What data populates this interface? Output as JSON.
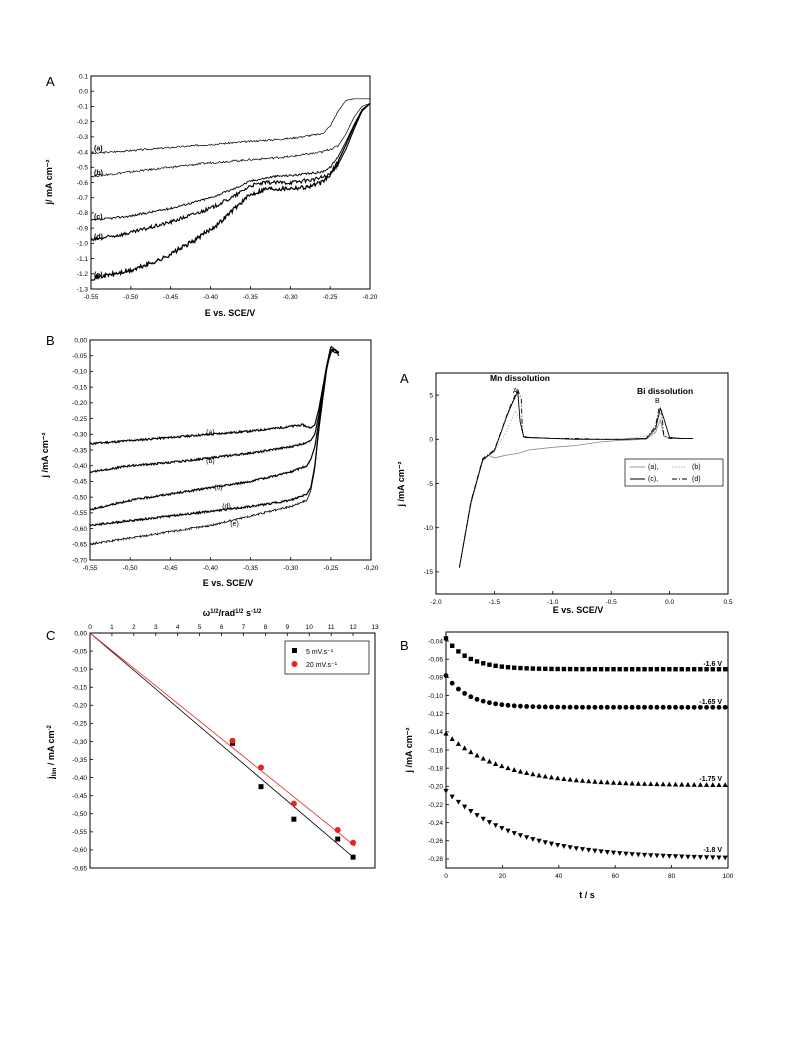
{
  "chart_data": [
    {
      "panel": "A",
      "type": "line",
      "xlabel": "E vs. SCE/V",
      "ylabel": "j/ mA cm⁻²",
      "xlim": [
        -0.55,
        -0.2
      ],
      "ylim": [
        -1.3,
        0.1
      ],
      "xticks": [
        "-0.55",
        "-0.50",
        "-0.45",
        "-0.40",
        "-0.35",
        "-0.30",
        "-0.25",
        "-0.20"
      ],
      "yticks": [
        "0.1",
        "0.0",
        "-0.1",
        "-0.2",
        "-0.3",
        "-0.4",
        "-0.5",
        "-0.6",
        "-0.7",
        "-0.8",
        "-0.9",
        "-1.0",
        "-1.1",
        "-1.2",
        "-1.3"
      ],
      "series": [
        {
          "name": "(a)",
          "x": [
            -0.55,
            -0.5,
            -0.45,
            -0.4,
            -0.35,
            -0.3,
            -0.26,
            -0.25,
            -0.24,
            -0.23,
            -0.22,
            -0.21,
            -0.2
          ],
          "y": [
            -0.41,
            -0.39,
            -0.37,
            -0.35,
            -0.33,
            -0.31,
            -0.28,
            -0.23,
            -0.13,
            -0.06,
            -0.05,
            -0.05,
            -0.05
          ]
        },
        {
          "name": "(b)",
          "x": [
            -0.55,
            -0.5,
            -0.45,
            -0.4,
            -0.35,
            -0.3,
            -0.26,
            -0.24,
            -0.23,
            -0.22,
            -0.21,
            -0.2
          ],
          "y": [
            -0.56,
            -0.53,
            -0.5,
            -0.47,
            -0.45,
            -0.43,
            -0.4,
            -0.36,
            -0.28,
            -0.17,
            -0.1,
            -0.08
          ]
        },
        {
          "name": "(c)",
          "x": [
            -0.55,
            -0.5,
            -0.45,
            -0.4,
            -0.37,
            -0.35,
            -0.32,
            -0.29,
            -0.26,
            -0.25,
            -0.24,
            -0.23,
            -0.22,
            -0.21,
            -0.2
          ],
          "y": [
            -0.85,
            -0.82,
            -0.77,
            -0.7,
            -0.64,
            -0.59,
            -0.56,
            -0.55,
            -0.53,
            -0.5,
            -0.43,
            -0.33,
            -0.22,
            -0.12,
            -0.08
          ]
        },
        {
          "name": "(d)",
          "x": [
            -0.55,
            -0.5,
            -0.45,
            -0.4,
            -0.37,
            -0.35,
            -0.33,
            -0.3,
            -0.27,
            -0.25,
            -0.24,
            -0.23,
            -0.22,
            -0.21,
            -0.2
          ],
          "y": [
            -0.98,
            -0.93,
            -0.86,
            -0.77,
            -0.69,
            -0.62,
            -0.6,
            -0.6,
            -0.58,
            -0.55,
            -0.48,
            -0.38,
            -0.25,
            -0.13,
            -0.08
          ]
        },
        {
          "name": "(e)",
          "x": [
            -0.55,
            -0.5,
            -0.46,
            -0.42,
            -0.39,
            -0.37,
            -0.35,
            -0.33,
            -0.31,
            -0.28,
            -0.26,
            -0.25,
            -0.24,
            -0.23,
            -0.22,
            -0.21,
            -0.2
          ],
          "y": [
            -1.23,
            -1.18,
            -1.1,
            -0.98,
            -0.87,
            -0.77,
            -0.68,
            -0.64,
            -0.64,
            -0.63,
            -0.6,
            -0.55,
            -0.46,
            -0.35,
            -0.23,
            -0.13,
            -0.08
          ]
        }
      ]
    },
    {
      "panel": "B",
      "type": "line",
      "xlabel": "E vs. SCE/V",
      "ylabel": "j /mA cm⁻²",
      "xlim": [
        -0.55,
        -0.2
      ],
      "ylim": [
        -0.7,
        0.0
      ],
      "xticks": [
        "-0,55",
        "-0,50",
        "-0,45",
        "-0,40",
        "-0,35",
        "-0,30",
        "-0,25",
        "-0,20"
      ],
      "yticks": [
        "0,00",
        "-0,05",
        "-0,10",
        "-0,15",
        "-0,20",
        "-0,25",
        "-0,30",
        "-0,35",
        "-0,40",
        "-0,45",
        "-0,50",
        "-0,55",
        "-0,60",
        "-0,65",
        "-0,70"
      ],
      "series": [
        {
          "name": "(a)",
          "x": [
            -0.55,
            -0.5,
            -0.45,
            -0.4,
            -0.35,
            -0.3,
            -0.285,
            -0.275,
            -0.27,
            -0.265,
            -0.26,
            -0.255,
            -0.25,
            -0.245,
            -0.24
          ],
          "y": [
            -0.33,
            -0.32,
            -0.31,
            -0.3,
            -0.29,
            -0.275,
            -0.27,
            -0.28,
            -0.27,
            -0.22,
            -0.15,
            -0.08,
            -0.04,
            -0.03,
            -0.04
          ]
        },
        {
          "name": "(b)",
          "x": [
            -0.55,
            -0.5,
            -0.45,
            -0.4,
            -0.35,
            -0.3,
            -0.285,
            -0.275,
            -0.27,
            -0.265,
            -0.26,
            -0.255,
            -0.25,
            -0.245,
            -0.24
          ],
          "y": [
            -0.42,
            -0.4,
            -0.39,
            -0.375,
            -0.36,
            -0.34,
            -0.33,
            -0.32,
            -0.3,
            -0.24,
            -0.16,
            -0.08,
            -0.03,
            -0.04,
            -0.04
          ]
        },
        {
          "name": "(c)",
          "x": [
            -0.55,
            -0.5,
            -0.45,
            -0.4,
            -0.35,
            -0.3,
            -0.28,
            -0.275,
            -0.27,
            -0.265,
            -0.26,
            -0.255,
            -0.25,
            -0.245,
            -0.24
          ],
          "y": [
            -0.54,
            -0.51,
            -0.49,
            -0.47,
            -0.45,
            -0.42,
            -0.4,
            -0.38,
            -0.34,
            -0.26,
            -0.17,
            -0.08,
            -0.02,
            -0.03,
            -0.04
          ]
        },
        {
          "name": "(d)",
          "x": [
            -0.55,
            -0.5,
            -0.45,
            -0.4,
            -0.35,
            -0.3,
            -0.28,
            -0.275,
            -0.27,
            -0.265,
            -0.26,
            -0.255,
            -0.25,
            -0.245,
            -0.24
          ],
          "y": [
            -0.59,
            -0.575,
            -0.56,
            -0.545,
            -0.53,
            -0.51,
            -0.49,
            -0.47,
            -0.4,
            -0.28,
            -0.18,
            -0.09,
            -0.03,
            -0.03,
            -0.05
          ]
        },
        {
          "name": "(e)",
          "x": [
            -0.55,
            -0.5,
            -0.45,
            -0.4,
            -0.35,
            -0.3,
            -0.28,
            -0.275,
            -0.27,
            -0.265,
            -0.26,
            -0.255,
            -0.25,
            -0.245,
            -0.24
          ],
          "y": [
            -0.65,
            -0.63,
            -0.61,
            -0.59,
            -0.56,
            -0.53,
            -0.51,
            -0.48,
            -0.41,
            -0.29,
            -0.19,
            -0.09,
            -0.04,
            -0.03,
            -0.05
          ]
        }
      ]
    },
    {
      "panel": "C",
      "type": "scatter",
      "xlabel": "ω¹ᐟ²/rad¹ᐟ² s⁻¹ᐟ²",
      "ylabel": "j_lim / mA cm⁻²",
      "xlim": [
        0,
        13
      ],
      "ylim": [
        -0.65,
        0.0
      ],
      "xticks": [
        "0",
        "1",
        "2",
        "3",
        "4",
        "5",
        "6",
        "7",
        "8",
        "9",
        "10",
        "11",
        "12",
        "13"
      ],
      "yticks": [
        "0,00",
        "-0,05",
        "-0,10",
        "-0,15",
        "-0,20",
        "-0,25",
        "-0,30",
        "-0,35",
        "-0,40",
        "-0,45",
        "-0,50",
        "-0,55",
        "-0,60",
        "-0,65"
      ],
      "series": [
        {
          "name": "5 mV.s⁻¹",
          "marker": "square",
          "color": "#000000",
          "x": [
            6.5,
            7.8,
            9.3,
            11.3,
            12.0
          ],
          "y": [
            -0.305,
            -0.425,
            -0.515,
            -0.57,
            -0.62
          ],
          "fit": [
            [
              0,
              0
            ],
            [
              12.1,
              -0.625
            ]
          ]
        },
        {
          "name": "20 mV.s⁻¹",
          "marker": "circle",
          "color": "#e8231f",
          "x": [
            6.5,
            7.8,
            9.3,
            11.3,
            12.0
          ],
          "y": [
            -0.298,
            -0.372,
            -0.472,
            -0.545,
            -0.58
          ],
          "fit": [
            [
              0,
              0
            ],
            [
              12.1,
              -0.59
            ]
          ]
        }
      ]
    },
    {
      "panel": "A",
      "type": "line",
      "xlabel": "E vs. SCE/V",
      "ylabel": "j /mA cm⁻²",
      "xlim": [
        -2.0,
        0.5
      ],
      "ylim": [
        -17.5,
        7.5
      ],
      "xticks": [
        "-2.0",
        "-1.5",
        "-1.0",
        "-0.5",
        "0.0",
        "0.5"
      ],
      "yticks": [
        "5",
        "0",
        "-5",
        "-10",
        "-15"
      ],
      "annotations": [
        "Mn dissolution",
        "A",
        "Bi dissolution",
        "B"
      ],
      "legend": {
        "row1": "(a),",
        "row1b": "(b)",
        "row2": "(c),",
        "row2b": "(d)",
        "position": "right"
      },
      "series": [
        {
          "name": "(a)",
          "x": [
            -1.8,
            -1.7,
            -1.6,
            -1.55,
            -1.5,
            -1.4,
            -1.3,
            -1.2,
            -1.0,
            -0.8,
            -0.6,
            -0.4,
            -0.2,
            -0.12,
            -0.08,
            -0.05,
            0.0,
            0.1,
            0.2
          ],
          "y": [
            -14.5,
            -7.0,
            -2.5,
            -1.8,
            -2.1,
            -1.8,
            -1.6,
            -1.2,
            -0.9,
            -0.7,
            -0.3,
            -0.1,
            0.0,
            0.8,
            2.2,
            0.4,
            0.1,
            0.1,
            0.1
          ]
        },
        {
          "name": "(b)",
          "x": [
            -1.8,
            -1.7,
            -1.6,
            -1.55,
            -1.5,
            -1.4,
            -1.32,
            -1.27,
            -1.25,
            -1.2,
            -1.0,
            -0.7,
            -0.4,
            -0.15,
            -0.1,
            -0.08,
            -0.05,
            0.0,
            0.2
          ],
          "y": [
            -14.5,
            -7.0,
            -2.4,
            -1.9,
            -1.4,
            0.8,
            3.2,
            2.0,
            0.2,
            0.1,
            0.1,
            0.0,
            0.0,
            0.5,
            2.5,
            3.0,
            0.3,
            0.1,
            0.1
          ]
        },
        {
          "name": "(c)",
          "x": [
            -1.8,
            -1.7,
            -1.6,
            -1.55,
            -1.5,
            -1.45,
            -1.4,
            -1.35,
            -1.3,
            -1.28,
            -1.25,
            -1.2,
            -1.0,
            -0.8,
            -0.6,
            -0.4,
            -0.2,
            -0.12,
            -0.08,
            -0.06,
            0.0,
            0.1,
            0.2
          ],
          "y": [
            -14.5,
            -7.2,
            -2.3,
            -1.8,
            -1.3,
            0.5,
            2.4,
            4.0,
            5.4,
            2.0,
            0.3,
            0.2,
            0.1,
            0.0,
            0.0,
            0.0,
            0.1,
            1.2,
            3.5,
            2.8,
            0.2,
            0.1,
            0.1
          ]
        },
        {
          "name": "(d)",
          "x": [
            -1.8,
            -1.7,
            -1.6,
            -1.55,
            -1.5,
            -1.45,
            -1.4,
            -1.35,
            -1.3,
            -1.27,
            -1.26,
            -1.25,
            -1.2,
            -1.0,
            -0.8,
            -0.6,
            -0.4,
            -0.2,
            -0.12,
            -0.09,
            -0.07,
            -0.05,
            0.0,
            0.2
          ],
          "y": [
            -14.5,
            -7.0,
            -2.2,
            -1.7,
            -1.2,
            0.6,
            2.5,
            4.2,
            5.6,
            4.5,
            1.0,
            0.2,
            0.2,
            0.1,
            0.1,
            0.0,
            0.0,
            0.1,
            1.5,
            3.6,
            3.4,
            0.4,
            0.1,
            0.1
          ]
        }
      ]
    },
    {
      "panel": "B",
      "type": "scatter",
      "xlabel": "t / s",
      "ylabel": "j /mA cm⁻²",
      "xlim": [
        0,
        100
      ],
      "ylim": [
        -0.29,
        -0.03
      ],
      "xticks": [
        "0",
        "20",
        "40",
        "60",
        "80",
        "100"
      ],
      "yticks": [
        "-0,04",
        "-0,06",
        "-0,08",
        "-0,10",
        "-0,12",
        "-0,14",
        "-0,16",
        "-0,18",
        "-0,20",
        "-0,22",
        "-0,24",
        "-0,26",
        "-0,28"
      ],
      "series": [
        {
          "name": "-1.6 V",
          "marker": "square",
          "j0": -0.037,
          "jinf": -0.071,
          "tau": 8
        },
        {
          "name": "-1.65 V",
          "marker": "circle",
          "j0": -0.078,
          "jinf": -0.113,
          "tau": 8
        },
        {
          "name": "-1.75 V",
          "marker": "triangle-up",
          "j0": -0.142,
          "jinf": -0.199,
          "tau": 20
        },
        {
          "name": "-1.8 V",
          "marker": "triangle-down",
          "j0": -0.205,
          "jinf": -0.28,
          "tau": 25
        }
      ]
    }
  ]
}
